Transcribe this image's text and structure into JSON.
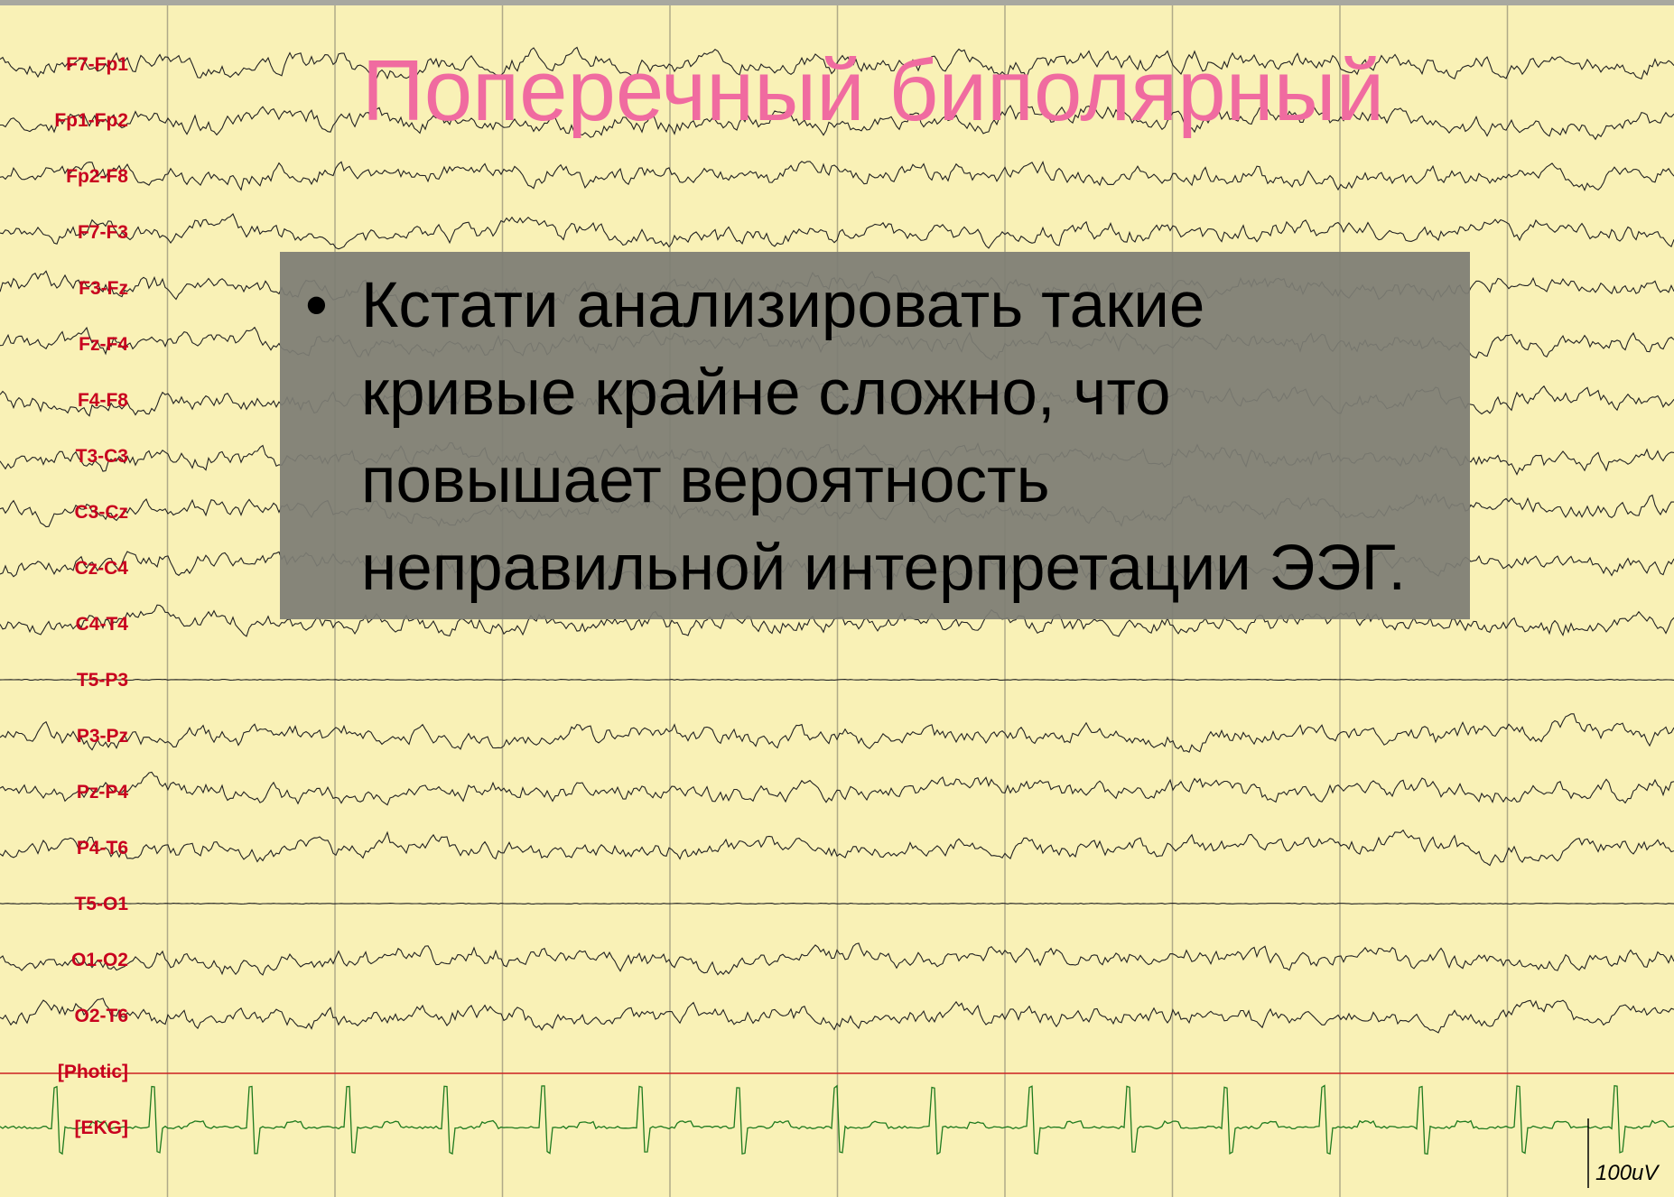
{
  "title": "Поперечный биполярный",
  "channels": [
    "F7-Fp1",
    "Fp1-Fp2",
    "Fp2-F8",
    "F7-F3",
    "F3-Fz",
    "Fz-F4",
    "F4-F8",
    "T3-C3",
    "C3-Cz",
    "Cz-C4",
    "C4-T4",
    "T5-P3",
    "P3-Pz",
    "Pz-P4",
    "P4-T6",
    "T5-O1",
    "O1-O2",
    "O2-T6",
    "[Photic]",
    "[EKG]"
  ],
  "bullet": "Кстати анализировать такие кривые крайне сложно, что повышает вероятность неправильной интерпретации ЭЭГ.",
  "scale_label": "100uV"
}
